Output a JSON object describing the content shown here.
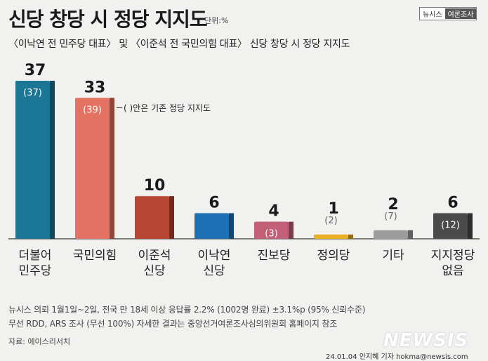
{
  "header": {
    "title": "신당 창당 시 정당 지지도",
    "unit": "단위:%",
    "brand_left": "뉴시스",
    "brand_right": "여론조사"
  },
  "subtitle": "〈이낙연 전 민주당 대표〉 및 〈이준석 전 국민의힘 대표〉 신당 창당 시 정당 지지도",
  "annotation": "( )안은 기존 정당 지지도",
  "chart_data": {
    "type": "bar",
    "title": "신당 창당 시 정당 지지도",
    "categories": [
      [
        "더불어",
        "민주당"
      ],
      [
        "국민의힘"
      ],
      [
        "이준석",
        "신당"
      ],
      [
        "이낙연",
        "신당"
      ],
      [
        "진보당"
      ],
      [
        "정의당"
      ],
      [
        "기타"
      ],
      [
        "지지정당",
        "없음"
      ]
    ],
    "series": [
      {
        "values": [
          37,
          33,
          10,
          6,
          4,
          1,
          2,
          6
        ]
      }
    ],
    "value_labels": [
      "37",
      "33",
      "10",
      "6",
      "4",
      "1",
      "2",
      "6"
    ],
    "previous_labels": [
      "(37)",
      "(39)",
      "",
      "",
      "(3)",
      "(2)",
      "(7)",
      "(12)"
    ],
    "colors": [
      "#1b7595",
      "#e47262",
      "#b84434",
      "#1d6fb3",
      "#c45f78",
      "#e8b021",
      "#9c9c9c",
      "#4a4a4a"
    ],
    "ylim": [
      0,
      37
    ],
    "xlabel": "",
    "ylabel": ""
  },
  "footer": {
    "note_line1": "뉴시스 의뢰 1월1일~2일, 전국 만 18세 이상 응답률 2.2% (1002명 완료) ±3.1%p (95% 신뢰수준)",
    "note_line2": "무선 RDD, ARS 조사 (무선 100%) 자세한 결과는 중앙선거여론조사심의위원회 홈페이지 참조",
    "source": "자료: 에이스리서치",
    "watermark": "NEWSIS",
    "credit": "24.01.04 안지혜 기자 hokma@newsis.com"
  }
}
